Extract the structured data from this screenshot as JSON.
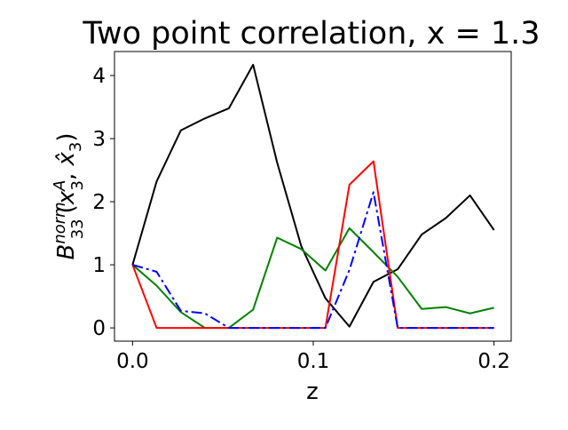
{
  "chart_data": {
    "type": "line",
    "title": "Two point correlation, x = 1.3",
    "xlabel": "z",
    "ylabel": {
      "base": "B",
      "sup": "norm",
      "sub": "33",
      "open": "(",
      "arg1": "x",
      "arg1_sup": "A",
      "arg1_sub": "3",
      "comma": ", ",
      "arg2": "x̂",
      "arg2_sub": "3",
      "close": ")"
    },
    "xlim": [
      -0.01,
      0.2095
    ],
    "ylim": [
      -0.21,
      4.38
    ],
    "x_ticks": [
      0.0,
      0.1,
      0.2
    ],
    "x_tick_labels": [
      "0.0",
      "0.1",
      "0.2"
    ],
    "y_ticks": [
      0,
      1,
      2,
      3,
      4
    ],
    "y_tick_labels": [
      "0",
      "1",
      "2",
      "3",
      "4"
    ],
    "grid": false,
    "x": [
      0.0,
      0.0133,
      0.0267,
      0.04,
      0.0533,
      0.0667,
      0.08,
      0.0933,
      0.1067,
      0.12,
      0.1333,
      0.1467,
      0.16,
      0.1733,
      0.1867,
      0.2
    ],
    "series": [
      {
        "color": "#000000",
        "style": "solid",
        "values": [
          1.0,
          2.32,
          3.13,
          3.32,
          3.48,
          4.17,
          2.62,
          1.3,
          0.47,
          0.02,
          0.73,
          0.93,
          1.48,
          1.74,
          2.1,
          1.55
        ]
      },
      {
        "color": "#008000",
        "style": "solid",
        "values": [
          1.0,
          0.67,
          0.25,
          0.0,
          0.0,
          0.29,
          1.43,
          1.25,
          0.91,
          1.58,
          1.2,
          0.81,
          0.3,
          0.33,
          0.23,
          0.32
        ]
      },
      {
        "color": "#ff0000",
        "style": "solid",
        "values": [
          1.0,
          0.0,
          0.0,
          0.0,
          0.0,
          0.0,
          0.0,
          0.0,
          0.0,
          2.27,
          2.64,
          0.0,
          0.0,
          0.0,
          0.0,
          0.0
        ]
      },
      {
        "color": "#0000ff",
        "style": "dashdot",
        "values": [
          1.0,
          0.89,
          0.27,
          0.23,
          0.0,
          0.0,
          0.0,
          0.0,
          0.0,
          0.92,
          2.15,
          0.0,
          0.0,
          0.0,
          0.0,
          0.0
        ]
      }
    ]
  }
}
